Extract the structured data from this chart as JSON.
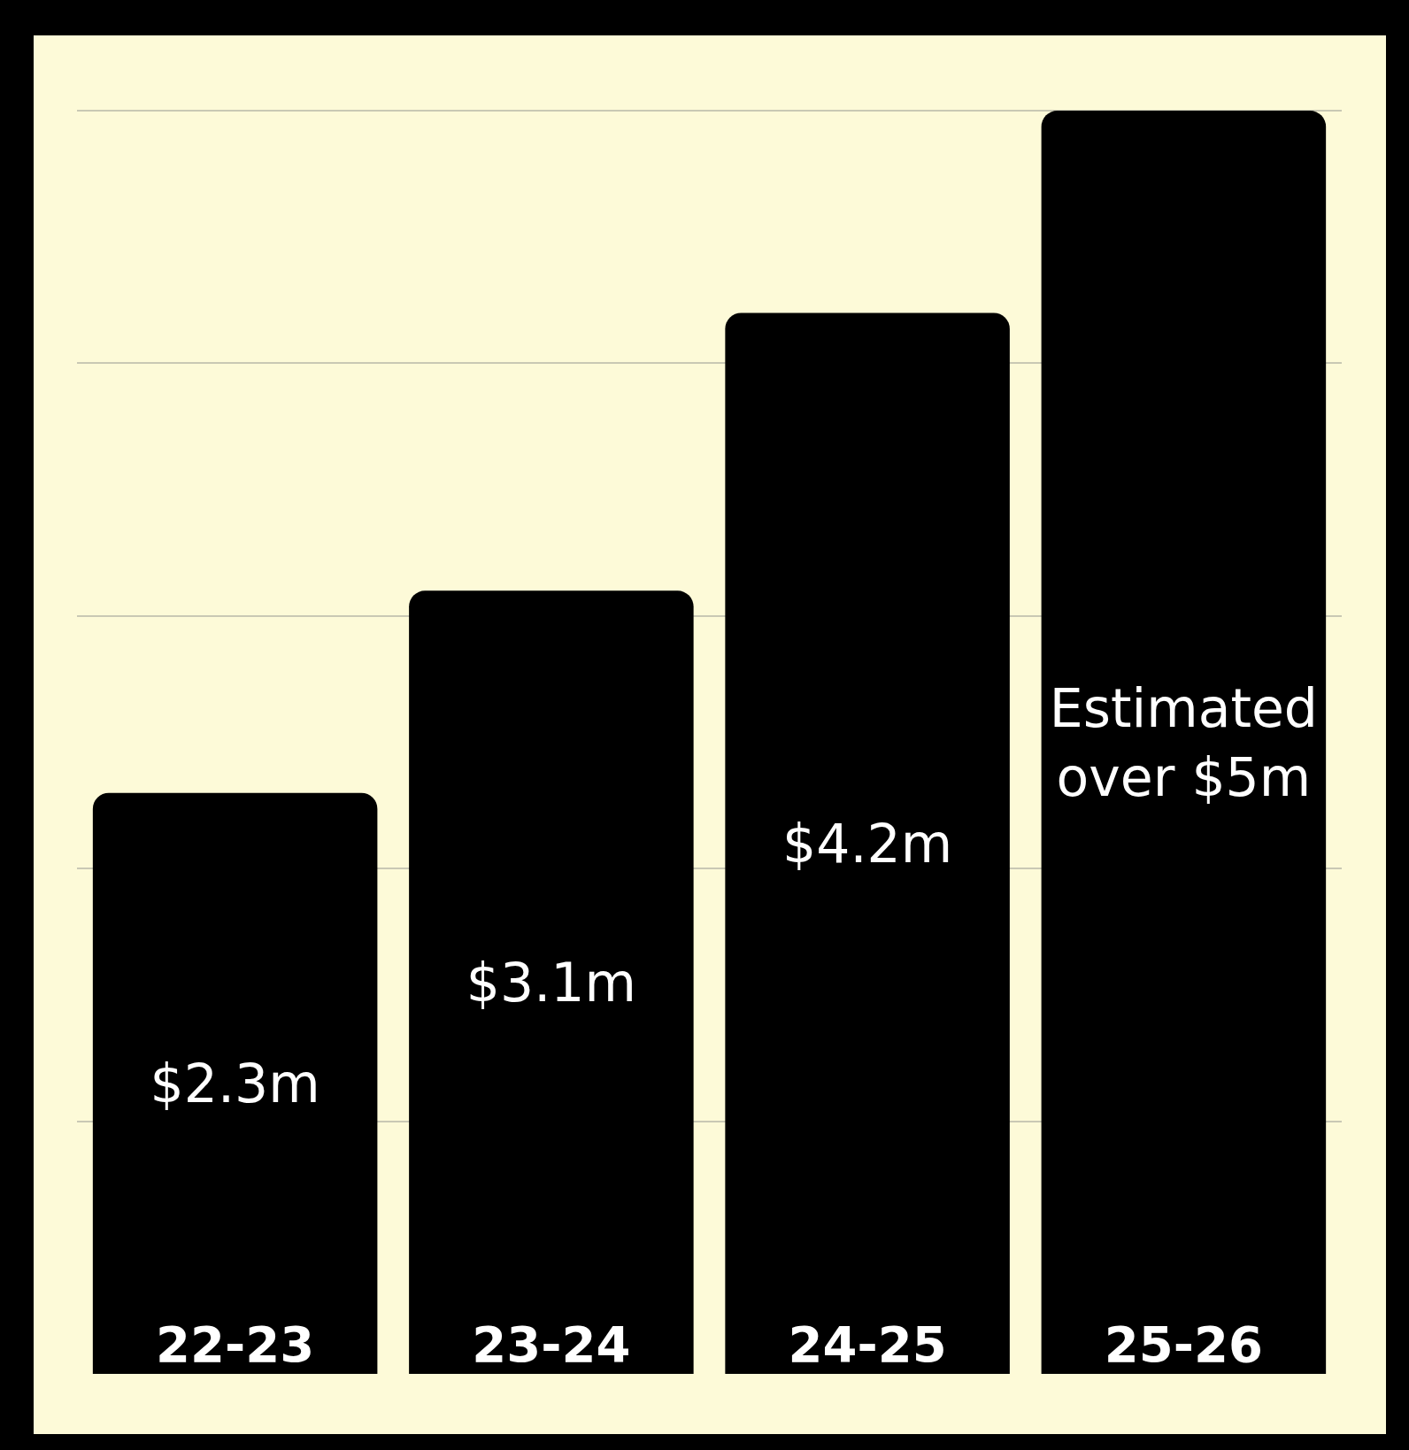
{
  "chart_data": {
    "type": "bar",
    "categories": [
      "22-23",
      "23-24",
      "24-25",
      "25-26"
    ],
    "values": [
      2.3,
      3.1,
      4.2,
      5
    ],
    "value_labels": [
      "$2.3m",
      "$3.1m",
      "$4.2m",
      "Estimated over $5m"
    ],
    "color": "#000000",
    "yticks": [
      {
        "value": 1,
        "label": null
      },
      {
        "value": 2,
        "label": null
      },
      {
        "value": 3,
        "label": null
      },
      {
        "value": 4,
        "label": null
      },
      {
        "value": 5,
        "label": null
      }
    ],
    "grid": "y",
    "tick_labels": "x"
  }
}
